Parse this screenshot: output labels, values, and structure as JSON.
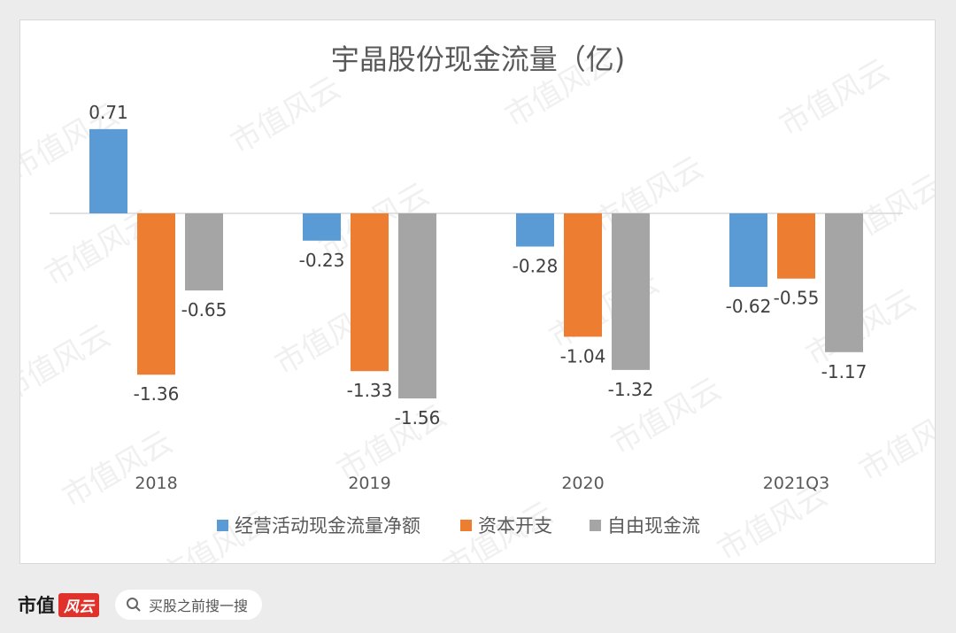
{
  "chart_data": {
    "type": "bar",
    "title": "宇晶股份现金流量（亿)",
    "categories": [
      "2018",
      "2019",
      "2020",
      "2021Q3"
    ],
    "series": [
      {
        "name": "经营活动现金流量净额",
        "color": "#5b9bd5",
        "values": [
          0.71,
          -0.23,
          -0.28,
          -0.62
        ]
      },
      {
        "name": "资本开支",
        "color": "#ed7d31",
        "values": [
          -1.36,
          -1.33,
          -1.04,
          -0.55
        ]
      },
      {
        "name": "自由现金流",
        "color": "#a5a5a5",
        "values": [
          -0.65,
          -1.56,
          -1.32,
          -1.17
        ]
      }
    ],
    "grid": false,
    "legend": "bottom",
    "data_labels": true
  },
  "watermark": "市值风云",
  "footer": {
    "brand": "市值",
    "brand_mark": "风云",
    "search_placeholder": "买股之前搜一搜"
  }
}
